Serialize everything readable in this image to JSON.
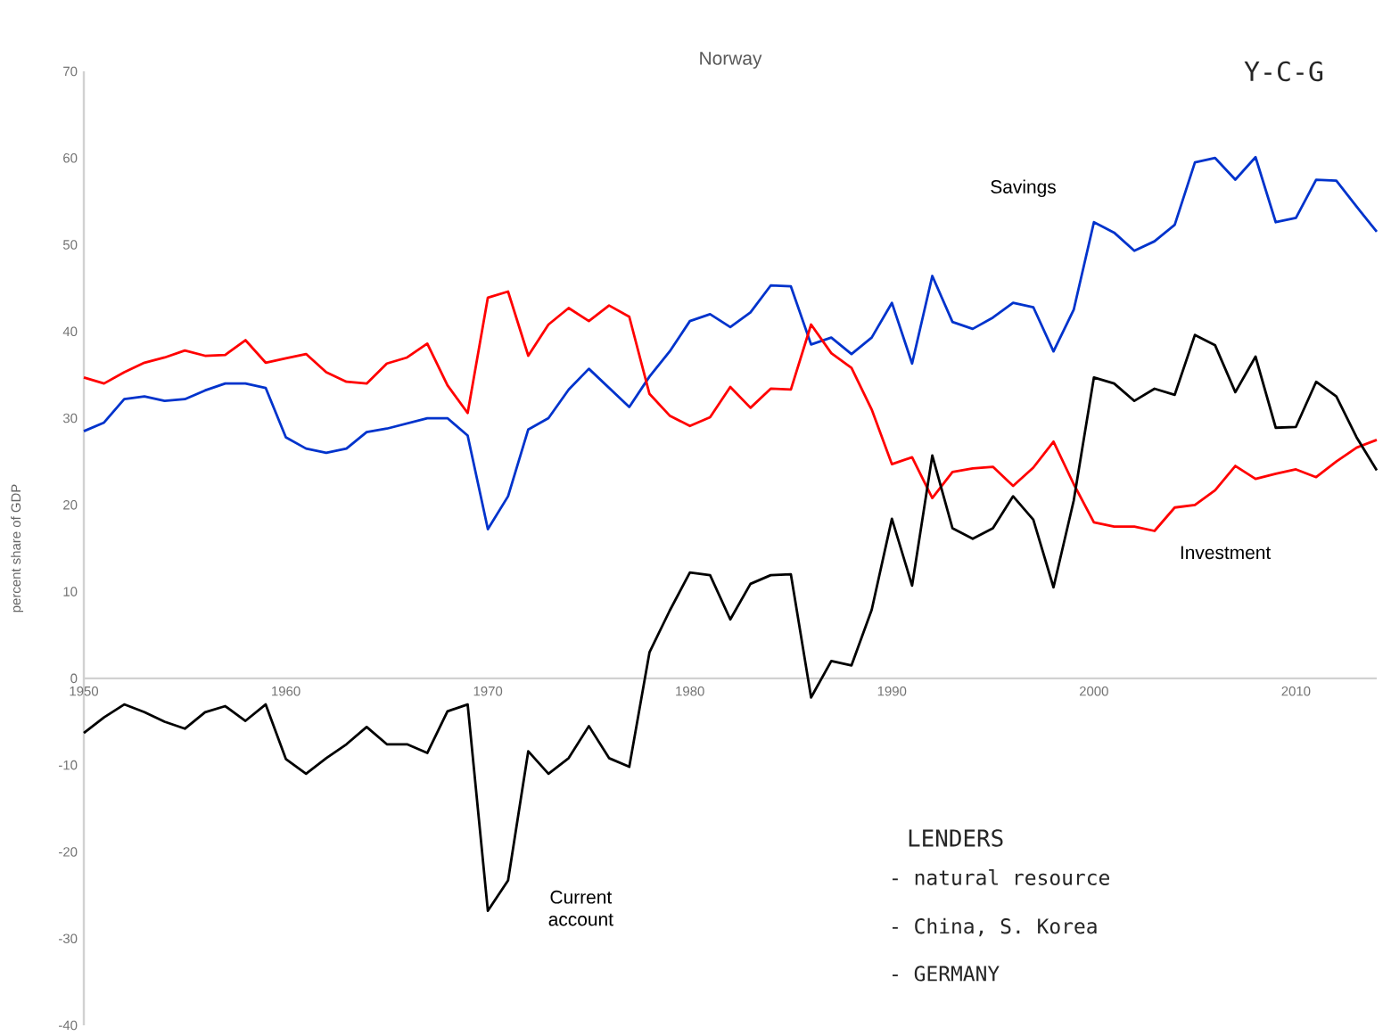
{
  "chart_data": {
    "type": "line",
    "title": "Norway",
    "ylabel": "percent share of GDP",
    "x": [
      1950,
      1951,
      1952,
      1953,
      1954,
      1955,
      1956,
      1957,
      1958,
      1959,
      1960,
      1961,
      1962,
      1963,
      1964,
      1965,
      1966,
      1967,
      1968,
      1969,
      1970,
      1971,
      1972,
      1973,
      1974,
      1975,
      1976,
      1977,
      1978,
      1979,
      1980,
      1981,
      1982,
      1983,
      1984,
      1985,
      1986,
      1987,
      1988,
      1989,
      1990,
      1991,
      1992,
      1993,
      1994,
      1995,
      1996,
      1997,
      1998,
      1999,
      2000,
      2001,
      2002,
      2003,
      2004,
      2005,
      2006,
      2007,
      2008,
      2009,
      2010,
      2011,
      2012,
      2013,
      2014
    ],
    "series": [
      {
        "name": "Savings",
        "color": "#0033cc",
        "values": [
          28.5,
          29.5,
          32.2,
          32.5,
          32,
          32.2,
          33.2,
          34,
          34,
          33.5,
          27.8,
          26.5,
          26,
          26.5,
          28.4,
          28.8,
          29.4,
          30,
          30,
          28,
          17.2,
          21,
          28.7,
          30,
          33.3,
          35.7,
          33.5,
          31.3,
          34.8,
          37.7,
          41.2,
          42,
          40.5,
          42.2,
          45.3,
          45.2,
          38.5,
          39.3,
          37.4,
          39.3,
          43.3,
          36.3,
          46.4,
          41.1,
          40.3,
          41.6,
          43.3,
          42.8,
          37.7,
          42.5,
          52.6,
          51.4,
          49.3,
          50.4,
          52.3,
          59.5,
          60,
          57.5,
          60.1,
          52.6,
          53.1,
          57.5,
          57.4,
          54.4,
          51.5
        ]
      },
      {
        "name": "Investment",
        "color": "#ff0000",
        "values": [
          34.7,
          34,
          35.3,
          36.4,
          37,
          37.8,
          37.2,
          37.3,
          39,
          36.4,
          36.9,
          37.4,
          35.3,
          34.2,
          34,
          36.3,
          37,
          38.6,
          33.8,
          30.6,
          43.9,
          44.6,
          37.2,
          40.8,
          42.7,
          41.2,
          43,
          41.7,
          32.8,
          30.3,
          29.1,
          30.1,
          33.6,
          31.2,
          33.4,
          33.3,
          40.8,
          37.5,
          35.8,
          31,
          24.7,
          25.5,
          20.8,
          23.8,
          24.2,
          24.4,
          22.2,
          24.3,
          27.3,
          22.4,
          18,
          17.5,
          17.5,
          17,
          19.7,
          20,
          21.7,
          24.5,
          23,
          23.6,
          24.1,
          23.2,
          25,
          26.6,
          27.5
        ]
      },
      {
        "name": "Current account",
        "color": "#000000",
        "values": [
          -6.3,
          -4.5,
          -3,
          -3.9,
          -5,
          -5.8,
          -3.9,
          -3.2,
          -4.9,
          -3,
          -9.3,
          -11,
          -9.2,
          -7.6,
          -5.6,
          -7.6,
          -7.6,
          -8.6,
          -3.8,
          -3,
          -26.8,
          -23.3,
          -8.4,
          -11,
          -9.2,
          -5.5,
          -9.2,
          -10.2,
          3,
          7.8,
          12.2,
          11.9,
          6.8,
          10.9,
          11.9,
          12,
          -2.2,
          2,
          1.5,
          7.9,
          18.4,
          10.7,
          25.7,
          17.3,
          16.1,
          17.3,
          21,
          18.3,
          10.5,
          20.5,
          34.7,
          34,
          32,
          33.4,
          32.7,
          39.6,
          38.4,
          33,
          37.1,
          28.9,
          29,
          34.2,
          32.5,
          27.8,
          24
        ]
      }
    ],
    "xlim": [
      1950,
      2014
    ],
    "xticks": [
      1950,
      1960,
      1970,
      1980,
      1990,
      2000,
      2010
    ],
    "ylim": [
      -40,
      70
    ],
    "yticks": [
      -40,
      -30,
      -20,
      -10,
      0,
      10,
      20,
      30,
      40,
      50,
      60,
      70
    ],
    "grid": false,
    "legend": false,
    "marker": "none",
    "line_style": "solid",
    "annotations": [
      "Y-C-G",
      "LENDERS",
      "- natural resource",
      "- China, S. Korea",
      "- GERMANY"
    ]
  }
}
